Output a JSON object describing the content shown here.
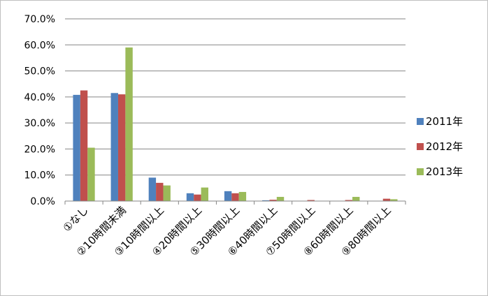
{
  "chart_data": {
    "type": "bar",
    "categories": [
      "①なし",
      "②10時間未満",
      "③10時間以上",
      "④20時間以上",
      "⑤30時間以上",
      "⑥40時間以上",
      "⑦50時間以上",
      "⑧60時間以上",
      "⑨80時間以上"
    ],
    "series": [
      {
        "name": "2011年",
        "color": "#4f81bd",
        "values": [
          40.8,
          41.5,
          9.0,
          3.0,
          3.8,
          0.3,
          0.0,
          0.0,
          0.0
        ]
      },
      {
        "name": "2012年",
        "color": "#c0504d",
        "values": [
          42.5,
          41.0,
          7.0,
          2.5,
          3.0,
          0.5,
          0.4,
          0.4,
          0.9
        ]
      },
      {
        "name": "2013年",
        "color": "#9bbb59",
        "values": [
          20.5,
          59.0,
          6.0,
          5.2,
          3.5,
          1.6,
          0.0,
          1.6,
          0.7
        ]
      }
    ],
    "yticks": [
      "0.0%",
      "10.0%",
      "20.0%",
      "30.0%",
      "40.0%",
      "50.0%",
      "60.0%",
      "70.0%"
    ],
    "ylim": [
      0,
      70
    ],
    "grid": true,
    "legend_position": "right"
  }
}
